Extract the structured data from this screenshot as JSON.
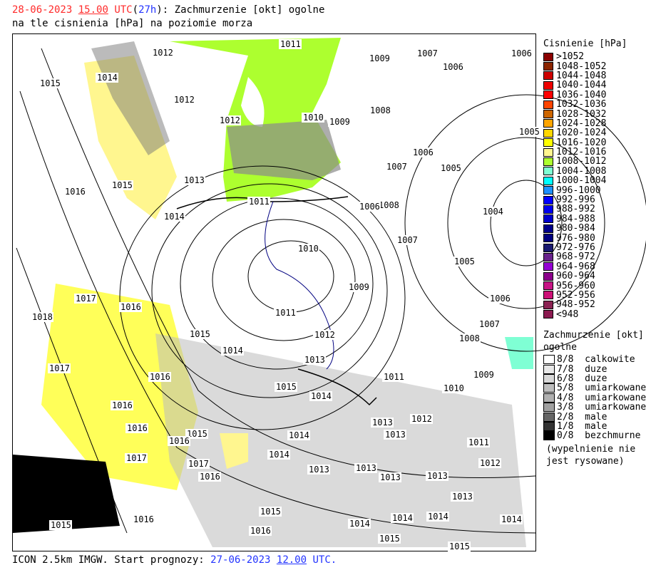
{
  "header": {
    "date": "28-06-2023",
    "hour": "15.00",
    "utc": "UTC",
    "lead_open": "(",
    "lead": "27h",
    "lead_close": "):",
    "title_rest": "Zachmurzenie [okt] ogolne",
    "line2": "na tle cisnienia [hPa] na poziomie morza"
  },
  "footer": {
    "model": "ICON 2.5km IMGW. Start prognozy:",
    "start_date": "27-06-2023",
    "start_hour": "12.00",
    "utc": "UTC."
  },
  "pressure_legend": {
    "title": "Cisnienie [hPa]",
    "items": [
      {
        "label": ">1052",
        "color": "#8b0000"
      },
      {
        "label": "1048-1052",
        "color": "#8b2500"
      },
      {
        "label": "1044-1048",
        "color": "#cd0000"
      },
      {
        "label": "1040-1044",
        "color": "#ee0000"
      },
      {
        "label": "1036-1040",
        "color": "#ff0000"
      },
      {
        "label": "1032-1036",
        "color": "#ff4500"
      },
      {
        "label": "1028-1032",
        "color": "#cd6600"
      },
      {
        "label": "1024-1028",
        "color": "#ffa500"
      },
      {
        "label": "1020-1024",
        "color": "#ffd700"
      },
      {
        "label": "1016-1020",
        "color": "#ffff00"
      },
      {
        "label": "1012-1016",
        "color": "#fff68f"
      },
      {
        "label": "1008-1012",
        "color": "#adff2f"
      },
      {
        "label": "1004-1008",
        "color": "#7fffd4"
      },
      {
        "label": "1000-1004",
        "color": "#00ffff"
      },
      {
        "label": "996-1000",
        "color": "#1e90ff"
      },
      {
        "label": "992-996",
        "color": "#0000ff"
      },
      {
        "label": "988-992",
        "color": "#0000ee"
      },
      {
        "label": "984-988",
        "color": "#0000cd"
      },
      {
        "label": "980-984",
        "color": "#00008b"
      },
      {
        "label": "976-980",
        "color": "#000080"
      },
      {
        "label": "972-976",
        "color": "#191970"
      },
      {
        "label": "968-972",
        "color": "#68228b"
      },
      {
        "label": "964-968",
        "color": "#9400d3"
      },
      {
        "label": "960-964",
        "color": "#8b008b"
      },
      {
        "label": "956-960",
        "color": "#c71585"
      },
      {
        "label": "952-956",
        "color": "#cd1076"
      },
      {
        "label": "948-952",
        "color": "#8b2252"
      },
      {
        "label": "<948",
        "color": "#8b1a50"
      }
    ]
  },
  "cloud_legend": {
    "title": "Zachmurzenie [okt]",
    "subtitle": "ogolne",
    "items": [
      {
        "label": "8/8  calkowite",
        "color": "#ffffff"
      },
      {
        "label": "7/8  duze",
        "color": "#e8e8e8"
      },
      {
        "label": "6/8  duze",
        "color": "#d8d8d8"
      },
      {
        "label": "5/8  umiarkowane",
        "color": "#bebebe"
      },
      {
        "label": "4/8  umiarkowane",
        "color": "#b0b0b0"
      },
      {
        "label": "3/8  umiarkowane",
        "color": "#a0a0a0"
      },
      {
        "label": "2/8  male",
        "color": "#666666"
      },
      {
        "label": "1/8  male",
        "color": "#333333"
      },
      {
        "label": "0/8  bezchmurne",
        "color": "#000000"
      }
    ],
    "note1": "(wypelnienie nie",
    "note2": "jest rysowane)"
  },
  "isobar_labels": [
    "1011",
    "1012",
    "1009",
    "1007",
    "1006",
    "1006",
    "1015",
    "1014",
    "1012",
    "1008",
    "1010",
    "1009",
    "1012",
    "1005",
    "1006",
    "1007",
    "1005",
    "1013",
    "1015",
    "1016",
    "1011",
    "1008",
    "1006",
    "1004",
    "1014",
    "1007",
    "1010",
    "1005",
    "1009",
    "1006",
    "1017",
    "1016",
    "1018",
    "1011",
    "1007",
    "1012",
    "1015",
    "1008",
    "1014",
    "1013",
    "1017",
    "1016",
    "1011",
    "1009",
    "1015",
    "1010",
    "1014",
    "1016",
    "1013",
    "1012",
    "1016",
    "1015",
    "1016",
    "1013",
    "1014",
    "1011",
    "1014",
    "1017",
    "1017",
    "1012",
    "1013",
    "1013",
    "1016",
    "1013",
    "1013",
    "1013",
    "1015",
    "1014",
    "1014",
    "1014",
    "1014",
    "1016",
    "1015",
    "1015",
    "1016",
    "1015"
  ]
}
